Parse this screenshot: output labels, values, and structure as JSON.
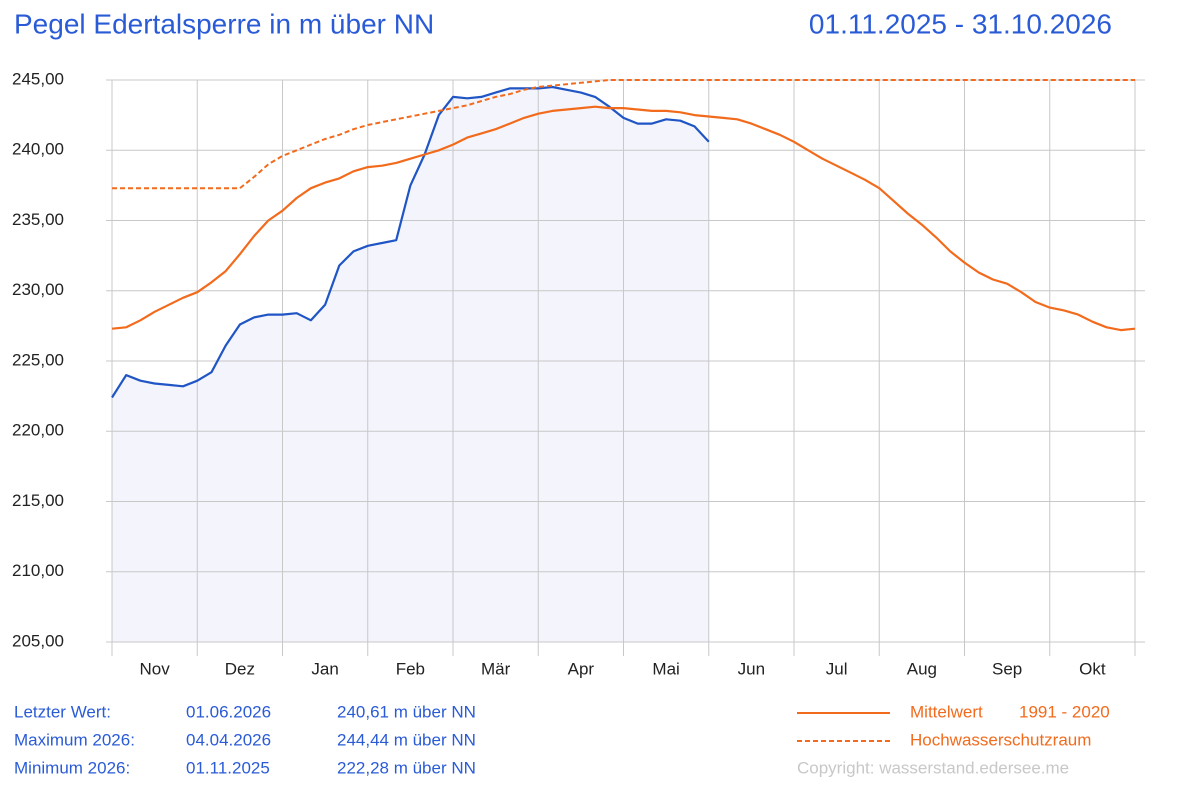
{
  "chart_data": {
    "type": "line",
    "title": "Pegel Edertalsperre in m über NN",
    "date_range": "01.11.2025 - 31.10.2026",
    "categories": [
      null,
      null,
      null,
      "Nov",
      null,
      null,
      null,
      null,
      null,
      "Dez",
      null,
      null,
      null,
      null,
      null,
      "Jan",
      null,
      null,
      null,
      null,
      null,
      "Feb",
      null,
      null,
      null,
      null,
      null,
      "Mär",
      null,
      null,
      null,
      null,
      null,
      "Apr",
      null,
      null,
      null,
      null,
      null,
      "Mai",
      null,
      null,
      null,
      null,
      null,
      "Jun",
      null,
      null,
      null,
      null,
      null,
      "Jul",
      null,
      null,
      null,
      null,
      null,
      "Aug",
      null,
      null,
      null,
      null,
      null,
      "Sep",
      null,
      null,
      null,
      null,
      null,
      "Okt",
      null,
      null,
      null
    ],
    "ylim": [
      205,
      245
    ],
    "yticks": [
      {
        "value": 205,
        "label": "205,00"
      },
      {
        "value": 210,
        "label": "210,00"
      },
      {
        "value": 215,
        "label": "215,00"
      },
      {
        "value": 220,
        "label": "220,00"
      },
      {
        "value": 225,
        "label": "225,00"
      },
      {
        "value": 230,
        "label": "230,00"
      },
      {
        "value": 235,
        "label": "235,00"
      },
      {
        "value": 240,
        "label": "240,00"
      },
      {
        "value": 245,
        "label": "245,00"
      }
    ],
    "grid": true,
    "series": [
      {
        "color": "#1f55c4",
        "fill": "#f4f5fc",
        "values": [
          222.4,
          224.0,
          223.6,
          223.4,
          223.3,
          223.2,
          223.6,
          224.2,
          226.1,
          227.6,
          228.1,
          228.3,
          228.3,
          228.4,
          227.9,
          229.0,
          231.8,
          232.8,
          233.2,
          233.4,
          233.6,
          237.5,
          239.7,
          242.5,
          243.8,
          243.7,
          243.8,
          244.1,
          244.4,
          244.4,
          244.4,
          244.5,
          244.3,
          244.1,
          243.8,
          243.1,
          242.3,
          241.9,
          241.9,
          242.2,
          242.1,
          241.7,
          240.61,
          null,
          null,
          null,
          null,
          null,
          null,
          null,
          null,
          null,
          null,
          null,
          null,
          null,
          null,
          null,
          null,
          null,
          null,
          null,
          null,
          null,
          null,
          null,
          null,
          null,
          null,
          null,
          null,
          null,
          null
        ]
      },
      {
        "name": "Mittelwert",
        "color": "#f26b1d",
        "values": [
          227.3,
          227.4,
          227.9,
          228.5,
          229.0,
          229.5,
          229.9,
          230.6,
          231.4,
          232.6,
          233.9,
          235.0,
          235.7,
          236.6,
          237.3,
          237.7,
          238.0,
          238.5,
          238.8,
          238.9,
          239.1,
          239.4,
          239.7,
          240.0,
          240.4,
          240.9,
          241.2,
          241.5,
          241.9,
          242.3,
          242.6,
          242.8,
          242.9,
          243.0,
          243.1,
          243.0,
          243.0,
          242.9,
          242.8,
          242.8,
          242.7,
          242.5,
          242.4,
          242.3,
          242.2,
          241.9,
          241.5,
          241.1,
          240.6,
          240.0,
          239.4,
          238.9,
          238.4,
          237.9,
          237.3,
          236.4,
          235.5,
          234.7,
          233.8,
          232.8,
          232.0,
          231.3,
          230.8,
          230.5,
          229.9,
          229.2,
          228.8,
          228.6,
          228.3,
          227.8,
          227.4,
          227.2,
          227.3
        ]
      },
      {
        "name": "Hochwasserschutzraum",
        "color": "#f26b1d",
        "dashed": true,
        "values": [
          237.3,
          237.3,
          237.3,
          237.3,
          237.3,
          237.3,
          237.3,
          237.3,
          237.3,
          237.3,
          238.1,
          239.0,
          239.6,
          240.0,
          240.4,
          240.8,
          241.1,
          241.5,
          241.8,
          242.0,
          242.2,
          242.4,
          242.6,
          242.8,
          243.0,
          243.2,
          243.5,
          243.8,
          244.0,
          244.3,
          244.5,
          244.6,
          244.7,
          244.8,
          244.9,
          245,
          245,
          245,
          245,
          245,
          245,
          245,
          245,
          245,
          245,
          245,
          245,
          245,
          245,
          245,
          245,
          245,
          245,
          245,
          245,
          245,
          245,
          245,
          245,
          245,
          245,
          245,
          245,
          245,
          245,
          245,
          245,
          245,
          245,
          245,
          245,
          245,
          245
        ]
      }
    ],
    "legend_note": "1991 - 2020",
    "stats": [
      {
        "label": "Letzter Wert:",
        "date": "01.06.2026",
        "value": "240,61 m über NN"
      },
      {
        "label": "Maximum 2026:",
        "date": "04.04.2026",
        "value": "244,44 m über NN"
      },
      {
        "label": "Minimum 2026:",
        "date": "01.11.2025",
        "value": "222,28 m über NN"
      }
    ],
    "copyright": "Copyright: wasserstand.edersee.me"
  }
}
